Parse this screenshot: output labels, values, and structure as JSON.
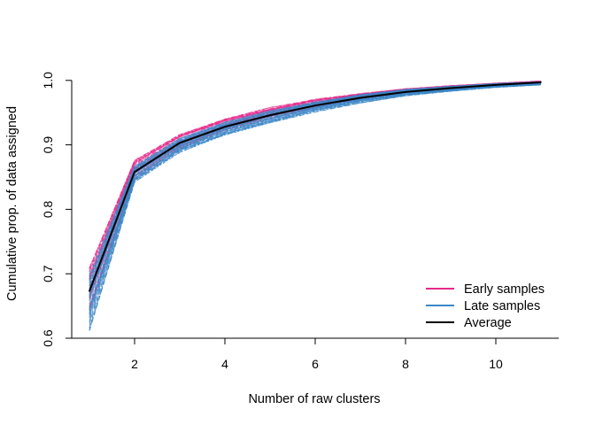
{
  "chart_data": {
    "type": "line",
    "title": "",
    "xlabel": "Number of raw clusters",
    "ylabel": "Cumulative prop. of data assigned",
    "xlim": [
      1,
      11
    ],
    "ylim": [
      0.6,
      1.0
    ],
    "xticks": [
      2,
      4,
      6,
      8,
      10
    ],
    "yticks": [
      0.6,
      0.7,
      0.8,
      0.9,
      1.0
    ],
    "ytick_labels": [
      "0.6",
      "0.7",
      "0.8",
      "0.9",
      "1.0"
    ],
    "grid": false,
    "legend_position": "bottom-right",
    "legend": [
      {
        "label": "Early samples",
        "color": "#e7298a"
      },
      {
        "label": "Late samples",
        "color": "#3b87c6"
      },
      {
        "label": "Average",
        "color": "#000000"
      }
    ],
    "x": [
      1,
      2,
      3,
      4,
      5,
      6,
      7,
      8,
      9,
      10,
      11
    ],
    "series": [
      {
        "name": "Average",
        "color": "#000000",
        "values": [
          0.673,
          0.858,
          0.903,
          0.928,
          0.946,
          0.961,
          0.973,
          0.982,
          0.988,
          0.993,
          0.997
        ]
      }
    ],
    "bands": [
      {
        "label": "Early samples",
        "color": "#e7298a",
        "style": "dashed",
        "lower": [
          0.64,
          0.848,
          0.894,
          0.922,
          0.941,
          0.957,
          0.97,
          0.98,
          0.986,
          0.991,
          0.995
        ],
        "upper": [
          0.71,
          0.876,
          0.916,
          0.94,
          0.958,
          0.971,
          0.98,
          0.987,
          0.992,
          0.996,
          0.999
        ]
      },
      {
        "label": "Late samples",
        "color": "#3b87c6",
        "style": "dashed",
        "lower": [
          0.612,
          0.842,
          0.888,
          0.915,
          0.934,
          0.951,
          0.965,
          0.976,
          0.983,
          0.989,
          0.993
        ],
        "upper": [
          0.7,
          0.868,
          0.91,
          0.935,
          0.953,
          0.967,
          0.978,
          0.986,
          0.991,
          0.995,
          0.998
        ]
      }
    ]
  }
}
